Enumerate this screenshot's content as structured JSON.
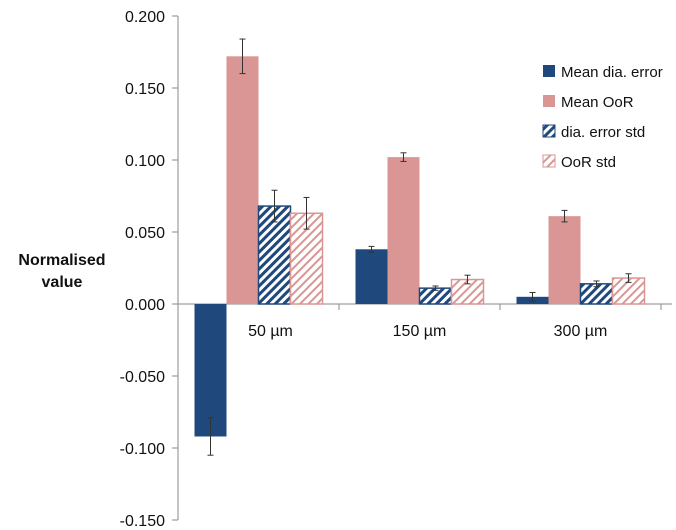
{
  "chart_data": {
    "type": "bar",
    "ylabel": "Normalised value",
    "ylim": [
      -0.15,
      0.2
    ],
    "y_ticks": [
      "0.200",
      "0.150",
      "0.100",
      "0.050",
      "0.000",
      "-0.050",
      "-0.100",
      "-0.150"
    ],
    "y_tick_values": [
      0.2,
      0.15,
      0.1,
      0.05,
      0.0,
      -0.05,
      -0.1,
      -0.15
    ],
    "categories": [
      "50 µm",
      "150 µm",
      "300 µm"
    ],
    "series": [
      {
        "name": "Mean dia. error",
        "values": [
          -0.092,
          0.038,
          0.005
        ],
        "errors": [
          0.013,
          0.002,
          0.003
        ],
        "color": "#1f497d",
        "pattern": "solid"
      },
      {
        "name": "Mean OoR",
        "values": [
          0.172,
          0.102,
          0.061
        ],
        "errors": [
          0.012,
          0.003,
          0.004
        ],
        "color": "#d99694",
        "pattern": "solid"
      },
      {
        "name": "dia. error std",
        "values": [
          0.068,
          0.011,
          0.014
        ],
        "errors": [
          0.011,
          0.0015,
          0.002
        ],
        "color": "#1f497d",
        "pattern": "hatch"
      },
      {
        "name": "OoR std",
        "values": [
          0.063,
          0.017,
          0.018
        ],
        "errors": [
          0.011,
          0.003,
          0.003
        ],
        "color": "#d99694",
        "pattern": "hatch"
      }
    ],
    "grid": false,
    "legend_position": "right"
  }
}
